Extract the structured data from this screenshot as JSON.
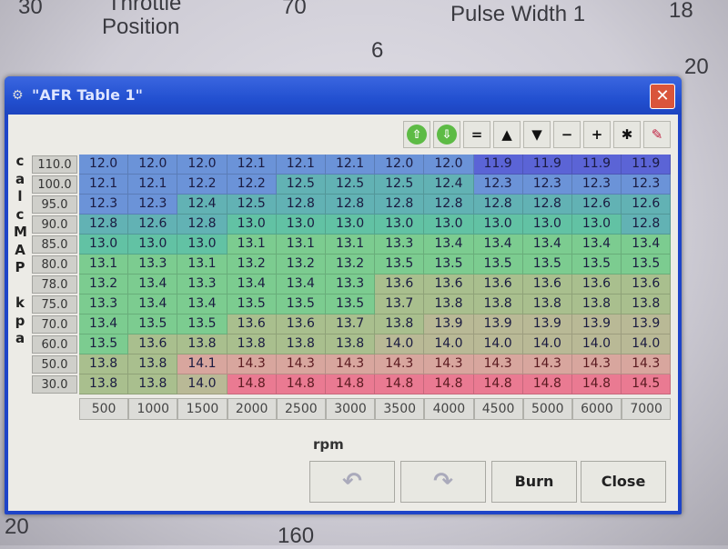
{
  "background_gauges": {
    "g1": "30",
    "g2": "Throttle",
    "g3": "Position",
    "g4": "70",
    "g5": "Pulse Width 1",
    "g6": "18",
    "g7": "6",
    "g8": "20",
    "g9": "20",
    "g10": "160"
  },
  "window": {
    "title": "\"AFR Table 1\"",
    "close_glyph": "✕"
  },
  "toolbar": [
    {
      "name": "shift-up-icon",
      "glyph": "⇧"
    },
    {
      "name": "shift-down-icon",
      "glyph": "⇩"
    },
    {
      "name": "equals-icon",
      "glyph": "="
    },
    {
      "name": "increment-icon",
      "glyph": "▲"
    },
    {
      "name": "decrement-icon",
      "glyph": "▼"
    },
    {
      "name": "minus-icon",
      "glyph": "−"
    },
    {
      "name": "plus-icon",
      "glyph": "+"
    },
    {
      "name": "multiply-icon",
      "glyph": "✱"
    },
    {
      "name": "pen-icon",
      "glyph": "✎"
    }
  ],
  "y_axis_label": [
    "c",
    "a",
    "l",
    "c",
    "M",
    "A",
    "P",
    "",
    "k",
    "p",
    "a"
  ],
  "x_axis_label": "rpm",
  "y_values": [
    "110.0",
    "100.0",
    "95.0",
    "90.0",
    "85.0",
    "80.0",
    "78.0",
    "75.0",
    "70.0",
    "60.0",
    "50.0",
    "30.0"
  ],
  "x_values": [
    "500",
    "1000",
    "1500",
    "2000",
    "2500",
    "3000",
    "3500",
    "4000",
    "4500",
    "5000",
    "6000",
    "7000"
  ],
  "table": [
    [
      "12.0",
      "12.0",
      "12.0",
      "12.1",
      "12.1",
      "12.1",
      "12.0",
      "12.0",
      "11.9",
      "11.9",
      "11.9",
      "11.9"
    ],
    [
      "12.1",
      "12.1",
      "12.2",
      "12.2",
      "12.5",
      "12.5",
      "12.5",
      "12.4",
      "12.3",
      "12.3",
      "12.3",
      "12.3"
    ],
    [
      "12.3",
      "12.3",
      "12.4",
      "12.5",
      "12.8",
      "12.8",
      "12.8",
      "12.8",
      "12.8",
      "12.8",
      "12.6",
      "12.6"
    ],
    [
      "12.8",
      "12.6",
      "12.8",
      "13.0",
      "13.0",
      "13.0",
      "13.0",
      "13.0",
      "13.0",
      "13.0",
      "13.0",
      "12.8"
    ],
    [
      "13.0",
      "13.0",
      "13.0",
      "13.1",
      "13.1",
      "13.1",
      "13.3",
      "13.4",
      "13.4",
      "13.4",
      "13.4",
      "13.4"
    ],
    [
      "13.1",
      "13.3",
      "13.1",
      "13.2",
      "13.2",
      "13.2",
      "13.5",
      "13.5",
      "13.5",
      "13.5",
      "13.5",
      "13.5"
    ],
    [
      "13.2",
      "13.4",
      "13.3",
      "13.4",
      "13.4",
      "13.3",
      "13.6",
      "13.6",
      "13.6",
      "13.6",
      "13.6",
      "13.6"
    ],
    [
      "13.3",
      "13.4",
      "13.4",
      "13.5",
      "13.5",
      "13.5",
      "13.7",
      "13.8",
      "13.8",
      "13.8",
      "13.8",
      "13.8"
    ],
    [
      "13.4",
      "13.5",
      "13.5",
      "13.6",
      "13.6",
      "13.7",
      "13.8",
      "13.9",
      "13.9",
      "13.9",
      "13.9",
      "13.9"
    ],
    [
      "13.5",
      "13.6",
      "13.8",
      "13.8",
      "13.8",
      "13.8",
      "14.0",
      "14.0",
      "14.0",
      "14.0",
      "14.0",
      "14.0"
    ],
    [
      "13.8",
      "13.8",
      "14.1",
      "14.3",
      "14.3",
      "14.3",
      "14.3",
      "14.3",
      "14.3",
      "14.3",
      "14.3",
      "14.3"
    ],
    [
      "13.8",
      "13.8",
      "14.0",
      "14.8",
      "14.8",
      "14.8",
      "14.8",
      "14.8",
      "14.8",
      "14.8",
      "14.8",
      "14.5"
    ]
  ],
  "color_scale": [
    [
      11.9,
      "#5b64d6"
    ],
    [
      12.3,
      "#6b93d8"
    ],
    [
      12.8,
      "#62b2b4"
    ],
    [
      13.0,
      "#62c2a4"
    ],
    [
      13.5,
      "#7ccc90"
    ],
    [
      13.8,
      "#a9bf8e"
    ],
    [
      14.0,
      "#b9b996"
    ],
    [
      14.3,
      "#d8a69e"
    ],
    [
      14.8,
      "#ea7a92"
    ]
  ],
  "buttons": {
    "undo": "↶",
    "redo": "↷",
    "burn": "Burn",
    "close": "Close"
  }
}
